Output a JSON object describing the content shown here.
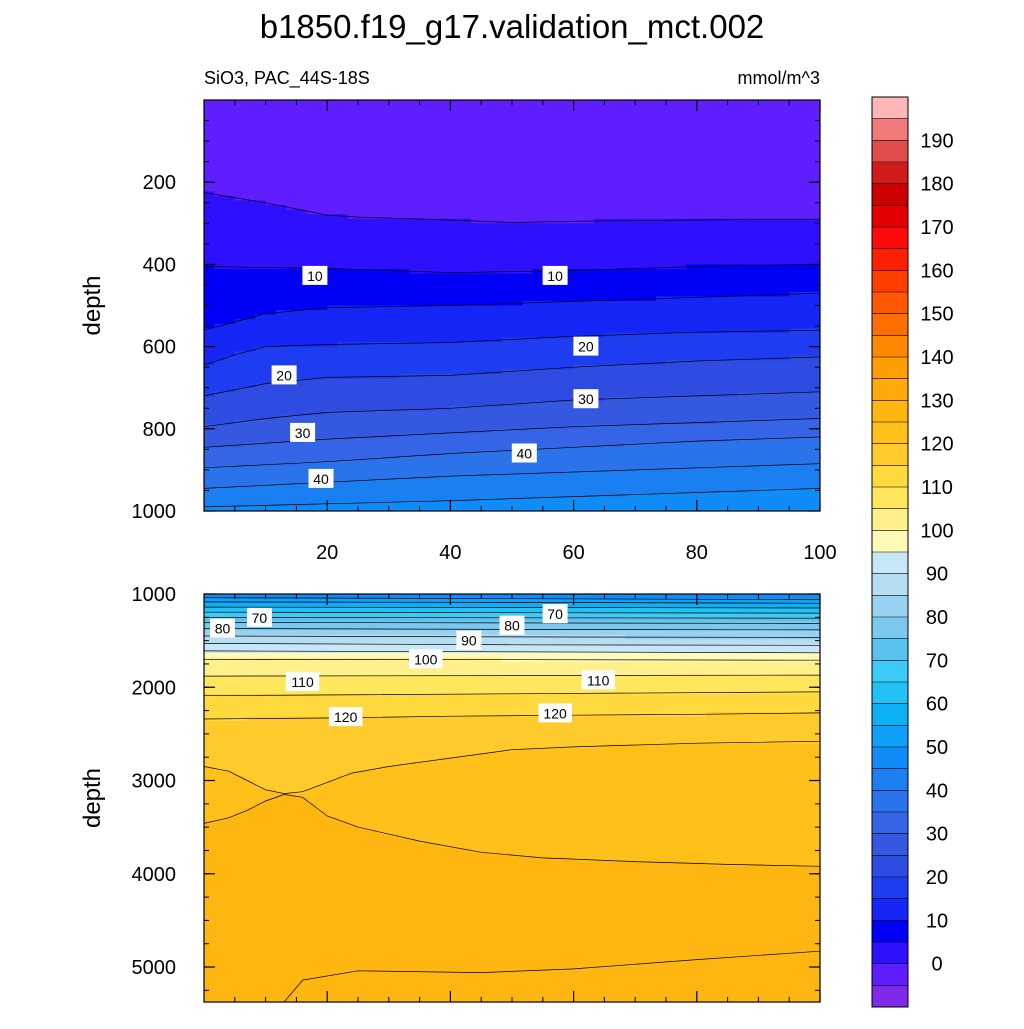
{
  "title": "b1850.f19_g17.validation_mct.002",
  "panel_left_title": "SiO3, PAC_44S-18S",
  "panel_right_title": "mmol/m^3",
  "chart_data": [
    {
      "type": "heatmap",
      "title": "b1850.f19_g17.validation_mct.002",
      "subtitle_left": "SiO3, PAC_44S-18S",
      "subtitle_right": "mmol/m^3",
      "xlabel": "",
      "ylabel": "depth",
      "xlim": [
        0,
        100
      ],
      "ylim": [
        1000,
        0
      ],
      "xticks": [
        20,
        40,
        60,
        80,
        100
      ],
      "yticks": [
        200,
        400,
        600,
        800,
        1000
      ],
      "contour_lines": [
        {
          "value": 5,
          "points": [
            [
              0,
              225
            ],
            [
              10,
              250
            ],
            [
              20,
              280
            ],
            [
              25,
              285
            ],
            [
              40,
              292
            ],
            [
              50,
              298
            ],
            [
              60,
              295
            ],
            [
              80,
              292
            ],
            [
              100,
              290
            ]
          ]
        },
        {
          "value": 10,
          "points": [
            [
              0,
              405
            ],
            [
              20,
              410
            ],
            [
              40,
              420
            ],
            [
              60,
              415
            ],
            [
              80,
              405
            ],
            [
              100,
              400
            ]
          ]
        },
        {
          "value": 15,
          "points": [
            [
              0,
              560
            ],
            [
              5,
              540
            ],
            [
              10,
              520
            ],
            [
              20,
              505
            ],
            [
              40,
              500
            ],
            [
              60,
              490
            ],
            [
              80,
              480
            ],
            [
              100,
              470
            ]
          ]
        },
        {
          "value": 20,
          "points": [
            [
              0,
              645
            ],
            [
              5,
              620
            ],
            [
              10,
              600
            ],
            [
              20,
              595
            ],
            [
              40,
              590
            ],
            [
              60,
              575
            ],
            [
              80,
              565
            ],
            [
              100,
              560
            ]
          ]
        },
        {
          "value": 25,
          "points": [
            [
              0,
              720
            ],
            [
              10,
              690
            ],
            [
              20,
              675
            ],
            [
              40,
              670
            ],
            [
              60,
              650
            ],
            [
              80,
              635
            ],
            [
              100,
              625
            ]
          ]
        },
        {
          "value": 30,
          "points": [
            [
              0,
              795
            ],
            [
              10,
              775
            ],
            [
              20,
              760
            ],
            [
              40,
              750
            ],
            [
              60,
              730
            ],
            [
              80,
              720
            ],
            [
              100,
              710
            ]
          ]
        },
        {
          "value": 35,
          "points": [
            [
              0,
              845
            ],
            [
              20,
              825
            ],
            [
              40,
              810
            ],
            [
              60,
              795
            ],
            [
              80,
              785
            ],
            [
              100,
              775
            ]
          ]
        },
        {
          "value": 40,
          "points": [
            [
              0,
              895
            ],
            [
              20,
              880
            ],
            [
              40,
              860
            ],
            [
              60,
              845
            ],
            [
              80,
              830
            ],
            [
              100,
              820
            ]
          ]
        },
        {
          "value": 45,
          "points": [
            [
              0,
              945
            ],
            [
              20,
              930
            ],
            [
              40,
              915
            ],
            [
              60,
              905
            ],
            [
              80,
              895
            ],
            [
              100,
              885
            ]
          ]
        },
        {
          "value": 50,
          "points": [
            [
              0,
              990
            ],
            [
              40,
              975
            ],
            [
              60,
              965
            ],
            [
              80,
              955
            ],
            [
              100,
              945
            ]
          ]
        }
      ],
      "contour_labels": [
        {
          "text": "10",
          "x": 18,
          "y": 428
        },
        {
          "text": "10",
          "x": 57,
          "y": 428
        },
        {
          "text": "20",
          "x": 13,
          "y": 670
        },
        {
          "text": "20",
          "x": 62,
          "y": 600
        },
        {
          "text": "30",
          "x": 16,
          "y": 810
        },
        {
          "text": "30",
          "x": 62,
          "y": 728
        },
        {
          "text": "40",
          "x": 19,
          "y": 922
        },
        {
          "text": "40",
          "x": 52,
          "y": 860
        }
      ]
    },
    {
      "type": "heatmap",
      "xlabel": "",
      "ylabel": "depth",
      "xlim": [
        0,
        100
      ],
      "ylim": [
        5375,
        1000
      ],
      "yticks": [
        1000,
        2000,
        3000,
        4000,
        5000
      ],
      "contour_lines": [
        {
          "value": 55,
          "points": [
            [
              0,
              1040
            ],
            [
              50,
              1050
            ],
            [
              100,
              1060
            ]
          ]
        },
        {
          "value": 60,
          "points": [
            [
              0,
              1085
            ],
            [
              50,
              1090
            ],
            [
              100,
              1100
            ]
          ]
        },
        {
          "value": 65,
          "points": [
            [
              0,
              1140
            ],
            [
              50,
              1145
            ],
            [
              100,
              1150
            ]
          ]
        },
        {
          "value": 70,
          "points": [
            [
              0,
              1195
            ],
            [
              50,
              1200
            ],
            [
              100,
              1205
            ]
          ]
        },
        {
          "value": 75,
          "points": [
            [
              0,
              1250
            ],
            [
              50,
              1255
            ],
            [
              100,
              1260
            ]
          ]
        },
        {
          "value": 80,
          "points": [
            [
              0,
              1305
            ],
            [
              50,
              1310
            ],
            [
              100,
              1315
            ]
          ]
        },
        {
          "value": 85,
          "points": [
            [
              0,
              1370
            ],
            [
              50,
              1380
            ],
            [
              100,
              1385
            ]
          ]
        },
        {
          "value": 90,
          "points": [
            [
              0,
              1450
            ],
            [
              50,
              1460
            ],
            [
              100,
              1465
            ]
          ]
        },
        {
          "value": 95,
          "points": [
            [
              0,
              1530
            ],
            [
              50,
              1545
            ],
            [
              100,
              1550
            ]
          ]
        },
        {
          "value": 100,
          "points": [
            [
              0,
              1610
            ],
            [
              50,
              1620
            ],
            [
              100,
              1630
            ]
          ]
        },
        {
          "value": 105,
          "points": [
            [
              0,
              1700
            ],
            [
              50,
              1705
            ],
            [
              100,
              1710
            ]
          ]
        },
        {
          "value": 110,
          "points": [
            [
              0,
              1880
            ],
            [
              50,
              1875
            ],
            [
              100,
              1870
            ]
          ]
        },
        {
          "value": 115,
          "points": [
            [
              0,
              2090
            ],
            [
              50,
              2070
            ],
            [
              100,
              2050
            ]
          ]
        },
        {
          "value": 120,
          "points": [
            [
              0,
              2340
            ],
            [
              20,
              2330
            ],
            [
              40,
              2310
            ],
            [
              60,
              2300
            ],
            [
              80,
              2290
            ],
            [
              100,
              2275
            ]
          ]
        },
        {
          "value": 125,
          "points": [
            [
              0,
              2850
            ],
            [
              4,
              2900
            ],
            [
              7,
              3000
            ],
            [
              10,
              3100
            ],
            [
              13,
              3140
            ],
            [
              16,
              3120
            ],
            [
              20,
              3020
            ],
            [
              24,
              2920
            ],
            [
              30,
              2850
            ],
            [
              40,
              2760
            ],
            [
              50,
              2670
            ],
            [
              60,
              2640
            ],
            [
              80,
              2600
            ],
            [
              100,
              2580
            ]
          ]
        },
        {
          "value": 130,
          "points": [
            [
              0,
              3460
            ],
            [
              4,
              3400
            ],
            [
              7,
              3320
            ],
            [
              10,
              3220
            ],
            [
              13,
              3150
            ],
            [
              16,
              3180
            ],
            [
              20,
              3380
            ],
            [
              25,
              3500
            ],
            [
              35,
              3650
            ],
            [
              45,
              3770
            ],
            [
              55,
              3830
            ],
            [
              70,
              3870
            ],
            [
              85,
              3900
            ],
            [
              100,
              3920
            ]
          ]
        },
        {
          "value": 130,
          "points": [
            [
              13,
              5375
            ],
            [
              16,
              5140
            ],
            [
              25,
              5040
            ],
            [
              45,
              5060
            ],
            [
              60,
              5020
            ],
            [
              80,
              4920
            ],
            [
              100,
              4830
            ]
          ]
        }
      ],
      "contour_labels": [
        {
          "text": "70",
          "x": 9,
          "y": 1255
        },
        {
          "text": "80",
          "x": 3,
          "y": 1370
        },
        {
          "text": "70",
          "x": 57,
          "y": 1215
        },
        {
          "text": "80",
          "x": 50,
          "y": 1340
        },
        {
          "text": "90",
          "x": 43,
          "y": 1500
        },
        {
          "text": "100",
          "x": 36,
          "y": 1700
        },
        {
          "text": "110",
          "x": 16,
          "y": 1945
        },
        {
          "text": "110",
          "x": 64,
          "y": 1925
        },
        {
          "text": "120",
          "x": 23,
          "y": 2320
        },
        {
          "text": "120",
          "x": 57,
          "y": 2280
        }
      ]
    }
  ],
  "colorbar": {
    "labels": [
      "0",
      "10",
      "20",
      "30",
      "40",
      "50",
      "60",
      "70",
      "80",
      "90",
      "100",
      "110",
      "120",
      "130",
      "140",
      "150",
      "160",
      "170",
      "180",
      "190"
    ],
    "colors": [
      "#7E2AE8",
      "#5F1EFF",
      "#2E10FF",
      "#0000F9",
      "#1526F7",
      "#1E3CF0",
      "#2E4CE2",
      "#3458E0",
      "#3664E6",
      "#2A73EB",
      "#1A7FF0",
      "#0F8CF7",
      "#0FA0F7",
      "#0BB0F5",
      "#22C2F7",
      "#3CCAF6",
      "#5AC2EF",
      "#7AC8EF",
      "#98D2F2",
      "#B5DEF3",
      "#C7E6F6",
      "#FFFBB6",
      "#FFF08C",
      "#FFE65C",
      "#FFDA3F",
      "#FFCB2C",
      "#FFC01A",
      "#FFB610",
      "#FFAA0A",
      "#FF9E00",
      "#FF8800",
      "#FF6E00",
      "#FF5800",
      "#FF3E00",
      "#FF2000",
      "#FF0A0A",
      "#E30000",
      "#CC0000",
      "#D11A1A",
      "#E24B4B",
      "#F07A7A",
      "#FFB6B6"
    ]
  }
}
